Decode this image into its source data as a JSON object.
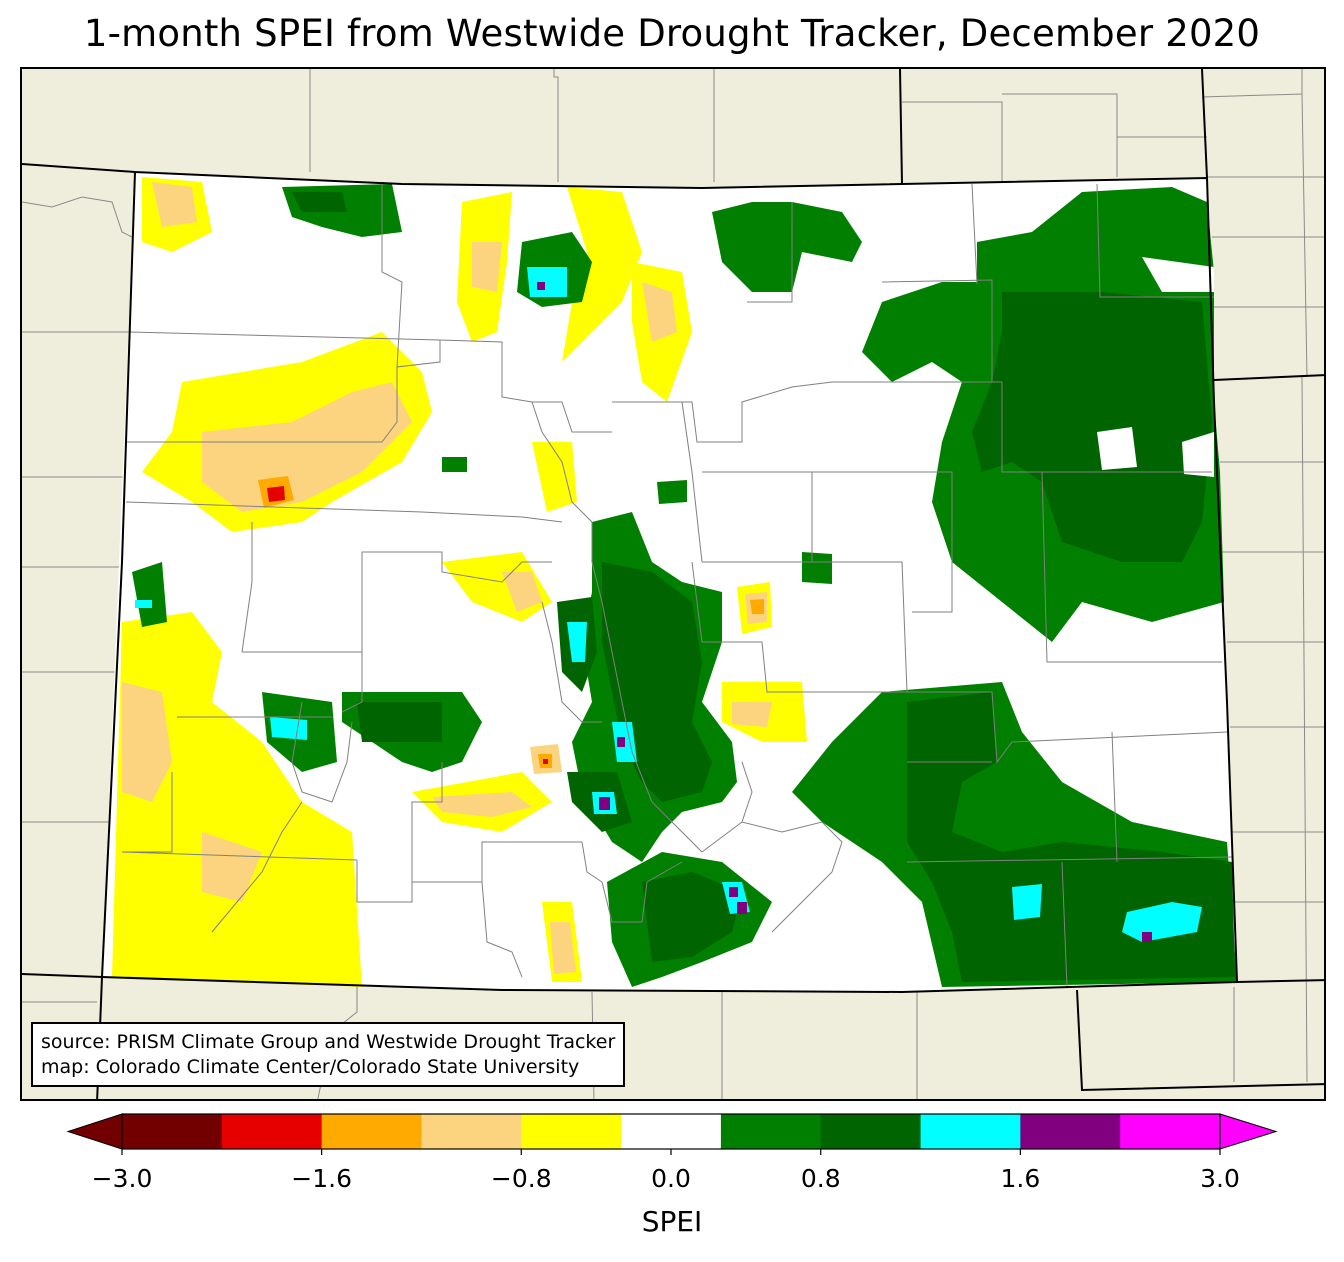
{
  "title": "1-month SPEI from Westwide Drought Tracker, December 2020",
  "source_lines": [
    "source: PRISM Climate Group and Westwide Drought Tracker",
    "map: Colorado Climate Center/Colorado State University"
  ],
  "colorbar": {
    "label": "SPEI",
    "ticks": [
      "−3.0",
      "−1.6",
      "−0.8",
      "0.0",
      "0.8",
      "1.6",
      "3.0"
    ],
    "bins": [
      {
        "from": -3.0,
        "to": -2.4,
        "color": "#730000"
      },
      {
        "from": -2.4,
        "to": -1.6,
        "color": "#e60000"
      },
      {
        "from": -1.6,
        "to": -1.2,
        "color": "#ffaa00"
      },
      {
        "from": -1.2,
        "to": -0.8,
        "color": "#fcd37f"
      },
      {
        "from": -0.8,
        "to": -0.4,
        "color": "#ffff00"
      },
      {
        "from": -0.4,
        "to": 0.4,
        "color": "#ffffff"
      },
      {
        "from": 0.4,
        "to": 0.8,
        "color": "#007f00"
      },
      {
        "from": 0.8,
        "to": 1.2,
        "color": "#006400"
      },
      {
        "from": 1.2,
        "to": 1.6,
        "color": "#00ffff"
      },
      {
        "from": 1.6,
        "to": 2.4,
        "color": "#800080"
      },
      {
        "from": 2.4,
        "to": 3.0,
        "color": "#ff00ff"
      }
    ],
    "extend": "both",
    "under_color": "#730000",
    "over_color": "#ff00ff"
  },
  "map": {
    "region": "Colorado",
    "background_color": "#efeedc",
    "county_line_color": "#808080"
  }
}
